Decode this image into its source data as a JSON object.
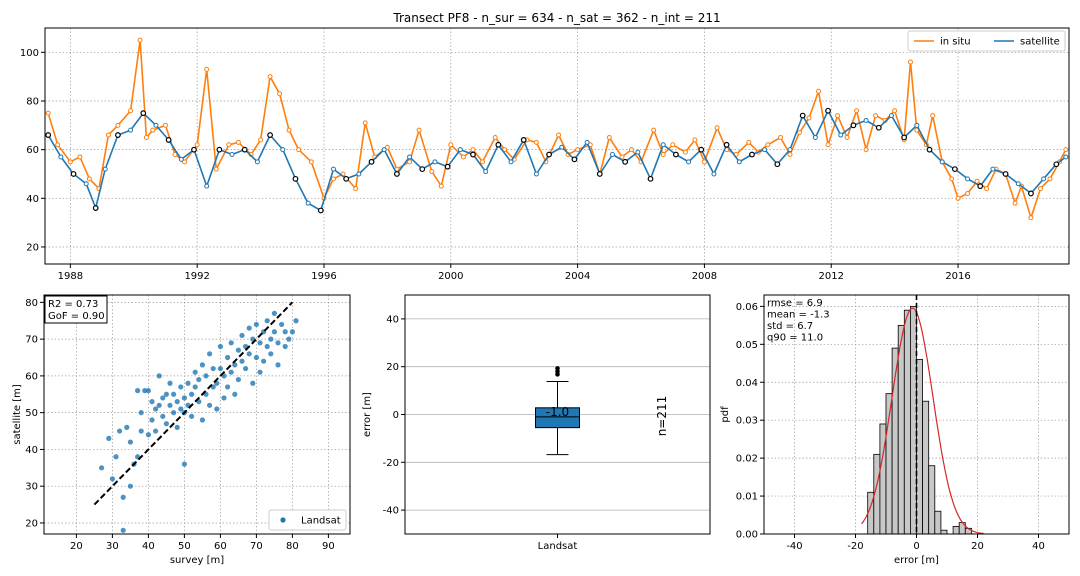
{
  "figure_title": "Transect PF8 - n_sur = 634 - n_sat = 362 - n_int = 211",
  "colors": {
    "in_situ": "#ff7f0e",
    "satellite": "#1f77b4",
    "intersect_edge": "#000000",
    "fit": "#d62728",
    "hist": "#c8c8c8"
  },
  "chart_data": [
    {
      "id": "timeseries",
      "type": "line",
      "title": "Transect PF8 - n_sur = 634 - n_sat = 362 - n_int = 211",
      "xlabel": "",
      "ylabel": "",
      "xlim": [
        1987.2,
        2019.5
      ],
      "ylim": [
        13,
        110
      ],
      "x_ticks": [
        1988,
        1992,
        1996,
        2000,
        2004,
        2008,
        2012,
        2016
      ],
      "y_ticks": [
        20,
        40,
        60,
        80,
        100
      ],
      "grid": true,
      "legend": {
        "placement": "top-right",
        "entries": [
          "in situ",
          "satellite"
        ]
      },
      "series": [
        {
          "name": "in situ",
          "color": "#ff7f0e",
          "x": [
            1987.3,
            1987.6,
            1988.0,
            1988.3,
            1988.6,
            1988.9,
            1989.2,
            1989.5,
            1989.9,
            1990.2,
            1990.4,
            1990.6,
            1991.0,
            1991.3,
            1991.6,
            1992.0,
            1992.3,
            1992.6,
            1993.0,
            1993.3,
            1993.7,
            1994.0,
            1994.3,
            1994.6,
            1994.9,
            1995.2,
            1995.6,
            1996.0,
            1996.3,
            1996.6,
            1997.0,
            1997.3,
            1997.6,
            1998.0,
            1998.3,
            1998.7,
            1999.0,
            1999.4,
            1999.7,
            2000.0,
            2000.4,
            2000.7,
            2001.0,
            2001.4,
            2001.7,
            2002.0,
            2002.4,
            2002.7,
            2003.0,
            2003.4,
            2003.7,
            2004.0,
            2004.4,
            2004.7,
            2005.0,
            2005.4,
            2005.7,
            2006.0,
            2006.4,
            2006.7,
            2007.0,
            2007.4,
            2007.7,
            2008.0,
            2008.4,
            2008.7,
            2009.0,
            2009.4,
            2009.7,
            2010.0,
            2010.4,
            2010.7,
            2011.0,
            2011.3,
            2011.6,
            2011.9,
            2012.2,
            2012.5,
            2012.8,
            2013.1,
            2013.4,
            2013.7,
            2014.0,
            2014.3,
            2014.5,
            2014.7,
            2015.0,
            2015.2,
            2015.5,
            2015.8,
            2016.0,
            2016.3,
            2016.6,
            2016.9,
            2017.2,
            2017.5,
            2017.8,
            2018.0,
            2018.3,
            2018.6,
            2018.9,
            2019.2,
            2019.4
          ],
          "y": [
            75,
            62,
            55,
            57,
            48,
            44,
            66,
            70,
            76,
            105,
            65,
            68,
            70,
            58,
            55,
            62,
            93,
            52,
            62,
            63,
            58,
            64,
            90,
            83,
            68,
            60,
            55,
            40,
            48,
            50,
            44,
            71,
            57,
            61,
            52,
            55,
            68,
            51,
            45,
            62,
            57,
            60,
            55,
            65,
            60,
            56,
            64,
            63,
            55,
            66,
            58,
            60,
            62,
            50,
            65,
            57,
            60,
            55,
            68,
            58,
            62,
            59,
            64,
            55,
            69,
            60,
            58,
            63,
            59,
            62,
            65,
            58,
            67,
            73,
            84,
            62,
            74,
            65,
            76,
            60,
            74,
            72,
            76,
            64,
            96,
            68,
            62,
            74,
            55,
            48,
            40,
            42,
            47,
            44,
            52,
            50,
            38,
            45,
            32,
            44,
            48,
            55,
            60
          ]
        },
        {
          "name": "satellite",
          "color": "#1f77b4",
          "x": [
            1987.3,
            1987.7,
            1988.1,
            1988.5,
            1988.8,
            1989.1,
            1989.5,
            1989.9,
            1990.3,
            1990.7,
            1991.1,
            1991.5,
            1991.9,
            1992.3,
            1992.7,
            1993.1,
            1993.5,
            1993.9,
            1994.3,
            1994.7,
            1995.1,
            1995.5,
            1995.9,
            1996.3,
            1996.7,
            1997.1,
            1997.5,
            1997.9,
            1998.3,
            1998.7,
            1999.1,
            1999.5,
            1999.9,
            2000.3,
            2000.7,
            2001.1,
            2001.5,
            2001.9,
            2002.3,
            2002.7,
            2003.1,
            2003.5,
            2003.9,
            2004.3,
            2004.7,
            2005.1,
            2005.5,
            2005.9,
            2006.3,
            2006.7,
            2007.1,
            2007.5,
            2007.9,
            2008.3,
            2008.7,
            2009.1,
            2009.5,
            2009.9,
            2010.3,
            2010.7,
            2011.1,
            2011.5,
            2011.9,
            2012.3,
            2012.7,
            2013.1,
            2013.5,
            2013.9,
            2014.3,
            2014.7,
            2015.1,
            2015.5,
            2015.9,
            2016.3,
            2016.7,
            2017.1,
            2017.5,
            2017.9,
            2018.3,
            2018.7,
            2019.1,
            2019.4
          ],
          "y": [
            66,
            57,
            50,
            46,
            36,
            52,
            66,
            68,
            75,
            70,
            64,
            56,
            60,
            45,
            60,
            58,
            60,
            55,
            66,
            60,
            48,
            38,
            35,
            52,
            48,
            50,
            55,
            60,
            50,
            57,
            52,
            55,
            53,
            60,
            58,
            51,
            62,
            55,
            64,
            50,
            58,
            61,
            56,
            63,
            50,
            58,
            55,
            59,
            48,
            62,
            58,
            55,
            60,
            50,
            62,
            55,
            58,
            60,
            54,
            60,
            74,
            65,
            76,
            66,
            70,
            72,
            69,
            74,
            65,
            70,
            60,
            55,
            52,
            48,
            45,
            52,
            50,
            46,
            42,
            48,
            54,
            57
          ]
        }
      ]
    },
    {
      "id": "scatter",
      "type": "scatter",
      "xlabel": "survey [m]",
      "ylabel": "satellite [m]",
      "xlim": [
        11,
        96
      ],
      "ylim": [
        17,
        82
      ],
      "x_ticks": [
        20,
        30,
        40,
        50,
        60,
        70,
        80,
        90
      ],
      "y_ticks": [
        20,
        30,
        40,
        50,
        60,
        70,
        80
      ],
      "grid": true,
      "annotation": [
        "R2 = 0.73",
        "GoF = 0.90"
      ],
      "legend": {
        "placement": "bottom-right",
        "entries": [
          "Landsat"
        ]
      },
      "identity_line": {
        "from": [
          25,
          25
        ],
        "to": [
          80,
          80
        ]
      },
      "series": [
        {
          "name": "Landsat",
          "color": "#1f77b4",
          "x": [
            27,
            29,
            30,
            31,
            32,
            33,
            33,
            34,
            35,
            35,
            36,
            37,
            37,
            38,
            38,
            39,
            40,
            40,
            41,
            41,
            42,
            42,
            43,
            43,
            44,
            44,
            45,
            45,
            46,
            46,
            47,
            47,
            48,
            48,
            49,
            49,
            50,
            50,
            50,
            51,
            51,
            52,
            52,
            53,
            53,
            54,
            54,
            55,
            55,
            56,
            56,
            57,
            57,
            58,
            58,
            59,
            59,
            60,
            60,
            61,
            61,
            62,
            62,
            63,
            63,
            64,
            64,
            65,
            65,
            66,
            66,
            67,
            67,
            68,
            68,
            69,
            69,
            70,
            70,
            71,
            71,
            72,
            72,
            73,
            73,
            74,
            74,
            75,
            75,
            76,
            76,
            77,
            78,
            78,
            79,
            80,
            81
          ],
          "y": [
            35,
            43,
            32,
            38,
            45,
            18,
            27,
            46,
            42,
            30,
            36,
            38,
            56,
            50,
            45,
            56,
            44,
            56,
            48,
            53,
            51,
            45,
            52,
            60,
            54,
            49,
            47,
            55,
            52,
            58,
            50,
            55,
            46,
            53,
            51,
            57,
            50,
            54,
            36,
            58,
            52,
            55,
            49,
            61,
            57,
            53,
            59,
            63,
            48,
            55,
            60,
            52,
            66,
            57,
            62,
            51,
            58,
            62,
            68,
            54,
            60,
            65,
            57,
            69,
            61,
            55,
            63,
            67,
            59,
            71,
            64,
            68,
            62,
            73,
            66,
            58,
            70,
            65,
            74,
            61,
            69,
            72,
            64,
            75,
            68,
            70,
            66,
            72,
            77,
            63,
            69,
            74,
            68,
            72,
            70,
            72,
            75
          ]
        }
      ]
    },
    {
      "id": "boxplot",
      "type": "box",
      "xlabel": "",
      "ylabel": "error [m]",
      "ylim": [
        -50,
        50
      ],
      "y_ticks": [
        -40,
        -20,
        0,
        20,
        40
      ],
      "grid": true,
      "category": "Landsat",
      "median_label": "-1.0",
      "n_label": "n=211",
      "stats": {
        "median": -1.0,
        "q1": -5.5,
        "q3": 2.8,
        "whisker_low": -16.8,
        "whisker_high": 13.8,
        "outliers": [
          16.8,
          18.0,
          19.3
        ]
      }
    },
    {
      "id": "histogram",
      "type": "bar",
      "xlabel": "error [m]",
      "ylabel": "pdf",
      "xlim": [
        -50,
        50
      ],
      "ylim": [
        0,
        0.063
      ],
      "x_ticks": [
        -40,
        -20,
        0,
        20,
        40
      ],
      "y_ticks": [
        0.0,
        0.01,
        0.02,
        0.03,
        0.04,
        0.05,
        0.06
      ],
      "grid": true,
      "stats_text": [
        "rmse = 6.9",
        "mean = -1.3",
        "std = 6.7",
        "q90 = 11.0"
      ],
      "bin_edges": [
        -16,
        -14,
        -12,
        -10,
        -8,
        -6,
        -4,
        -2,
        0,
        2,
        4,
        6,
        8,
        10,
        12,
        14,
        16,
        18,
        20,
        22
      ],
      "values": [
        0.011,
        0.021,
        0.029,
        0.037,
        0.049,
        0.055,
        0.059,
        0.06,
        0.046,
        0.035,
        0.018,
        0.006,
        0.001,
        0.0,
        0.002,
        0.003,
        0.0015,
        0.0,
        0.0
      ],
      "normal_fit": {
        "mean": -1.3,
        "std": 6.7
      },
      "vline_x": 0
    }
  ]
}
